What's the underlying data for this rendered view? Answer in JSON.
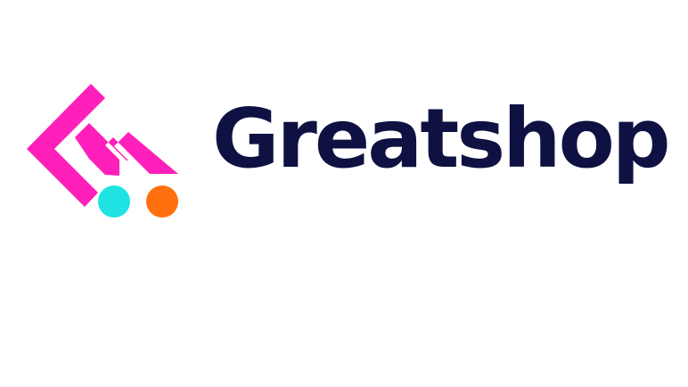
{
  "brand": {
    "name": "Greatshop",
    "colors": {
      "text": "#0e1141",
      "mark": "#ff1fba",
      "wheel_left": "#1fe3e3",
      "wheel_right": "#ff6f0d"
    },
    "icon": "shopping-cart-logo-icon"
  }
}
